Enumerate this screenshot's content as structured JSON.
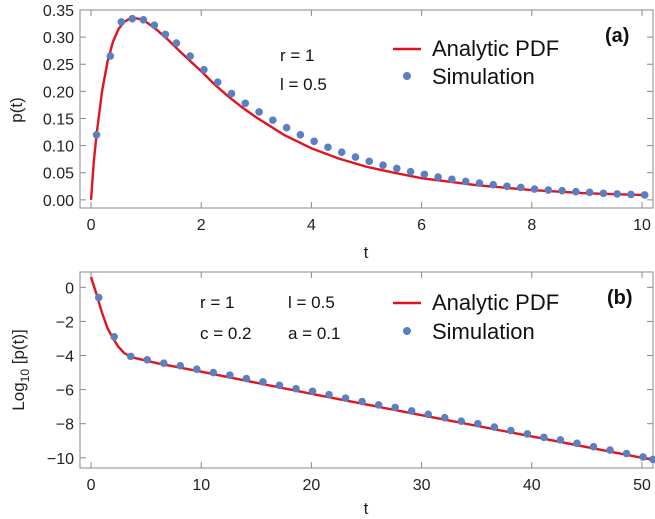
{
  "chart_data": [
    {
      "type": "line",
      "panel_tag": "(a)",
      "xlabel": "t",
      "ylabel": "p(t)",
      "xlim": [
        -0.2,
        10.2
      ],
      "ylim": [
        -0.015,
        0.35
      ],
      "xticks": [
        0,
        2,
        4,
        6,
        8,
        10
      ],
      "yticks": [
        0.0,
        0.05,
        0.1,
        0.15,
        0.2,
        0.25,
        0.3,
        0.35
      ],
      "ytick_labels": [
        "0.00",
        "0.05",
        "0.10",
        "0.15",
        "0.20",
        "0.25",
        "0.30",
        "0.35"
      ],
      "annotations": [
        "r = 1",
        "l = 0.5"
      ],
      "legend": [
        "Analytic PDF",
        "Simulation"
      ],
      "legend_position": "top-right",
      "series": [
        {
          "name": "Analytic PDF",
          "style": "line",
          "color": "#e0141e",
          "x": [
            0,
            0.05,
            0.1,
            0.2,
            0.3,
            0.4,
            0.5,
            0.6,
            0.7,
            0.8,
            0.9,
            1.0,
            1.2,
            1.4,
            1.6,
            1.8,
            2.0,
            2.25,
            2.5,
            2.75,
            3.0,
            3.5,
            4.0,
            4.5,
            5.0,
            5.5,
            6.0,
            7.0,
            8.0,
            9.0,
            10.0
          ],
          "y": [
            0.0,
            0.07,
            0.12,
            0.2,
            0.255,
            0.292,
            0.315,
            0.328,
            0.334,
            0.335,
            0.333,
            0.328,
            0.313,
            0.295,
            0.275,
            0.256,
            0.237,
            0.212,
            0.19,
            0.17,
            0.152,
            0.12,
            0.095,
            0.076,
            0.061,
            0.05,
            0.04,
            0.027,
            0.018,
            0.012,
            0.009
          ]
        },
        {
          "name": "Simulation",
          "style": "scatter",
          "color": "#5b7fbf",
          "x": [
            0.1,
            0.35,
            0.55,
            0.75,
            0.95,
            1.15,
            1.35,
            1.55,
            1.8,
            2.05,
            2.3,
            2.55,
            2.8,
            3.05,
            3.3,
            3.55,
            3.8,
            4.05,
            4.3,
            4.55,
            4.8,
            5.05,
            5.3,
            5.55,
            5.8,
            6.05,
            6.3,
            6.55,
            6.8,
            7.05,
            7.3,
            7.55,
            7.8,
            8.05,
            8.3,
            8.55,
            8.8,
            9.05,
            9.3,
            9.55,
            9.8,
            10.05
          ],
          "y": [
            0.12,
            0.265,
            0.328,
            0.334,
            0.332,
            0.322,
            0.305,
            0.289,
            0.265,
            0.24,
            0.217,
            0.196,
            0.178,
            0.162,
            0.147,
            0.133,
            0.12,
            0.108,
            0.097,
            0.088,
            0.079,
            0.071,
            0.064,
            0.058,
            0.052,
            0.047,
            0.042,
            0.038,
            0.034,
            0.031,
            0.028,
            0.025,
            0.023,
            0.02,
            0.018,
            0.017,
            0.015,
            0.014,
            0.012,
            0.011,
            0.01,
            0.009
          ]
        }
      ]
    },
    {
      "type": "line",
      "panel_tag": "(b)",
      "xlabel": "t",
      "ylabel_main": "Log",
      "ylabel_sub": "10",
      "ylabel_rest": " [p(t)]",
      "xlim": [
        -1,
        51
      ],
      "ylim": [
        -10.6,
        0.9
      ],
      "xticks": [
        0,
        10,
        20,
        30,
        40,
        50
      ],
      "yticks": [
        0,
        -2,
        -4,
        -6,
        -8,
        -10
      ],
      "ytick_labels": [
        "0",
        "−2",
        "−4",
        "−6",
        "−8",
        "−10"
      ],
      "annotations": [
        "r = 1",
        "l = 0.5",
        "c = 0.2",
        "a = 0.1"
      ],
      "legend": [
        "Analytic PDF",
        "Simulation"
      ],
      "legend_position": "top-right",
      "series": [
        {
          "name": "Analytic PDF",
          "style": "line",
          "color": "#e0141e",
          "x": [
            0,
            0.5,
            1,
            1.5,
            2,
            2.5,
            3,
            3.5,
            4,
            6,
            10,
            20,
            30,
            40,
            50,
            51
          ],
          "y": [
            0.6,
            -0.4,
            -1.5,
            -2.4,
            -3.0,
            -3.5,
            -3.85,
            -4.05,
            -4.15,
            -4.45,
            -4.95,
            -6.25,
            -7.5,
            -8.75,
            -10.0,
            -10.12
          ]
        },
        {
          "name": "Simulation",
          "style": "scatter",
          "color": "#5b7fbf",
          "x": [
            0.7,
            2.1,
            3.6,
            5.1,
            6.6,
            8.1,
            9.6,
            11.1,
            12.6,
            14.1,
            15.6,
            17.1,
            18.6,
            20.1,
            21.6,
            23.1,
            24.6,
            26.1,
            27.6,
            29.1,
            30.6,
            32.1,
            33.6,
            35.1,
            36.6,
            38.1,
            39.6,
            41.1,
            42.6,
            44.1,
            45.6,
            47.1,
            48.6,
            50.1,
            51
          ],
          "y": [
            -0.6,
            -2.9,
            -4.05,
            -4.25,
            -4.45,
            -4.6,
            -4.8,
            -5.0,
            -5.15,
            -5.35,
            -5.55,
            -5.75,
            -5.95,
            -6.1,
            -6.3,
            -6.5,
            -6.7,
            -6.9,
            -7.05,
            -7.25,
            -7.45,
            -7.65,
            -7.85,
            -8.0,
            -8.2,
            -8.4,
            -8.6,
            -8.8,
            -8.95,
            -9.15,
            -9.35,
            -9.55,
            -9.75,
            -9.95,
            -10.1
          ]
        }
      ]
    }
  ]
}
